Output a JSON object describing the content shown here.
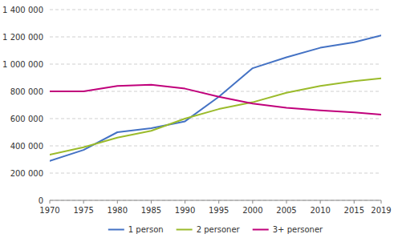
{
  "chart_data": {
    "type": "line",
    "x": [
      1970,
      1975,
      1980,
      1985,
      1990,
      1995,
      2000,
      2005,
      2010,
      2015,
      2019
    ],
    "series": [
      {
        "name": "1 person",
        "color": "#4472C4",
        "values": [
          290000,
          370000,
          500000,
          530000,
          580000,
          760000,
          970000,
          1050000,
          1120000,
          1160000,
          1210000
        ]
      },
      {
        "name": "2 personer",
        "color": "#9BBB2B",
        "values": [
          335000,
          390000,
          460000,
          510000,
          600000,
          670000,
          720000,
          790000,
          840000,
          875000,
          895000
        ]
      },
      {
        "name": "3+ personer",
        "color": "#C0007B",
        "values": [
          800000,
          800000,
          840000,
          848000,
          820000,
          760000,
          710000,
          680000,
          660000,
          645000,
          630000
        ]
      }
    ],
    "xlim": [
      1970,
      2019
    ],
    "xticks": [
      1970,
      1975,
      1980,
      1985,
      1990,
      1995,
      2000,
      2005,
      2010,
      2015,
      2019
    ],
    "ylim": [
      0,
      1400000
    ],
    "yticks": [
      0,
      {
        "value": 200000,
        "label": "200 000"
      },
      {
        "value": 400000,
        "label": "400 000"
      },
      {
        "value": 600000,
        "label": "600 000"
      },
      {
        "value": 800000,
        "label": "800 000"
      },
      {
        "value": 1000000,
        "label": "1 000 000"
      },
      {
        "value": 1200000,
        "label": "1 200 000"
      },
      {
        "value": 1400000,
        "label": "1 400 000"
      }
    ],
    "grid": true,
    "legend": "bottom"
  }
}
